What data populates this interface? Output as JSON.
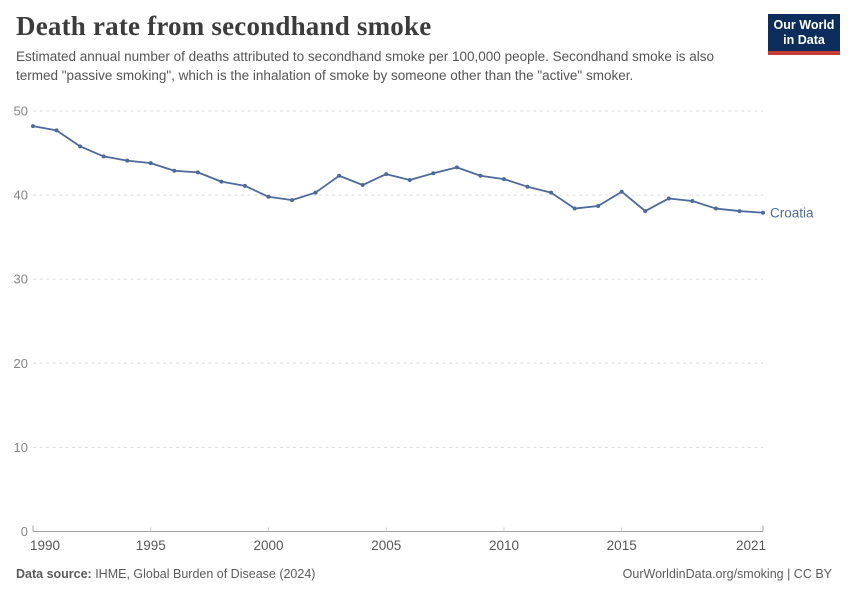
{
  "header": {
    "title": "Death rate from secondhand smoke",
    "subtitle": "Estimated annual number of deaths attributed to secondhand smoke per 100,000 people. Secondhand smoke is also termed \"passive smoking\", which is the inhalation of smoke by someone other than the \"active\" smoker.",
    "logo": {
      "line1": "Our World",
      "line2": "in Data",
      "bg_color": "#0d2e5c",
      "accent_color": "#c63d31"
    }
  },
  "chart_data": {
    "type": "line",
    "title": "Death rate from secondhand smoke",
    "xlabel": "",
    "ylabel": "",
    "xlim": [
      1990,
      2021
    ],
    "ylim": [
      0,
      50
    ],
    "yticks": [
      0,
      10,
      20,
      30,
      40,
      50
    ],
    "xticks": [
      1990,
      1995,
      2000,
      2005,
      2010,
      2015,
      2021
    ],
    "grid": "horizontal-dashed",
    "legend_position": "end-of-line-label",
    "series": [
      {
        "name": "Croatia",
        "color": "#4C6A9C",
        "x": [
          1990,
          1991,
          1992,
          1993,
          1994,
          1995,
          1996,
          1997,
          1998,
          1999,
          2000,
          2001,
          2002,
          2003,
          2004,
          2005,
          2006,
          2007,
          2008,
          2009,
          2010,
          2011,
          2012,
          2013,
          2014,
          2015,
          2016,
          2017,
          2018,
          2019,
          2020,
          2021
        ],
        "values": [
          48.2,
          47.7,
          45.8,
          44.6,
          44.1,
          43.8,
          42.9,
          42.7,
          41.6,
          41.1,
          39.8,
          39.4,
          40.3,
          42.3,
          41.2,
          42.5,
          41.8,
          42.6,
          43.3,
          42.3,
          41.9,
          41.0,
          40.3,
          38.4,
          38.7,
          40.4,
          38.1,
          39.6,
          39.3,
          38.4,
          38.1,
          37.9
        ]
      }
    ]
  },
  "footer": {
    "source_label": "Data source:",
    "source_value": " IHME, Global Burden of Disease (2024)",
    "rights": "OurWorldinData.org/smoking | CC BY"
  }
}
